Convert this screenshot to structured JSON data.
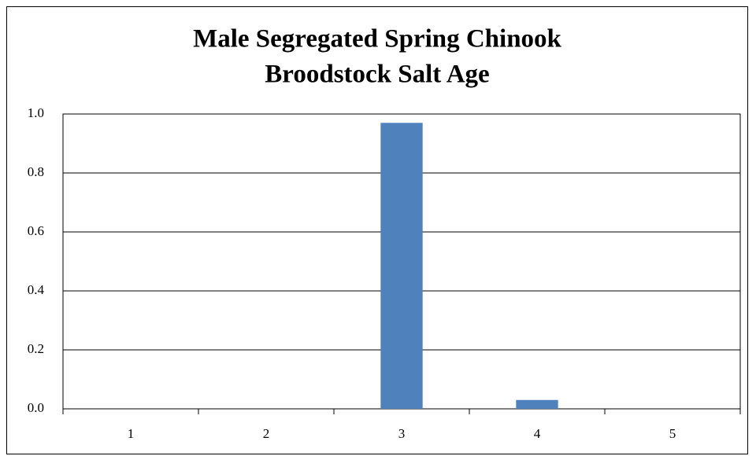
{
  "chart_data": {
    "type": "bar",
    "title": [
      "Male Segregated Spring Chinook",
      "Broodstock  Salt Age"
    ],
    "categories": [
      "1",
      "2",
      "3",
      "4",
      "5"
    ],
    "values": [
      0,
      0,
      0.97,
      0.03,
      0
    ],
    "color": "#4f81bd",
    "ylim": [
      0,
      1
    ],
    "yticks": [
      {
        "value": 0,
        "label": "0.0"
      },
      {
        "value": 0.2,
        "label": "0.2"
      },
      {
        "value": 0.4,
        "label": "0.4"
      },
      {
        "value": 0.6,
        "label": "0.6"
      },
      {
        "value": 0.8,
        "label": "0.8"
      },
      {
        "value": 1,
        "label": "1.0"
      }
    ],
    "grid": true
  }
}
